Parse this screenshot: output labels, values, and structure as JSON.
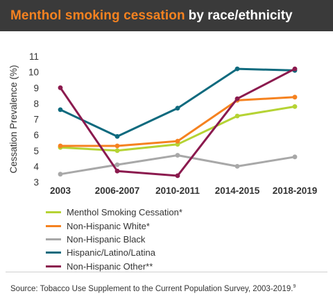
{
  "title": {
    "highlight": "Menthol smoking cessation",
    "rest": "by race/ethnicity"
  },
  "colors": {
    "title_bg": "#3a3a3a",
    "title_highlight": "#f58220"
  },
  "chart_data": {
    "type": "line",
    "title": "Menthol smoking cessation by race/ethnicity",
    "categories": [
      "2003",
      "2006-2007",
      "2010-2011",
      "2014-2015",
      "2018-2019"
    ],
    "ylabel": "Cessation Prevalence (%)",
    "xlabel": "",
    "ylim": [
      3,
      11
    ],
    "yticks": [
      3,
      4,
      5,
      6,
      7,
      8,
      9,
      10,
      11
    ],
    "grid": false,
    "legend_position": "bottom",
    "series": [
      {
        "name": "Menthol Smoking Cessation*",
        "color": "#b5d334",
        "values": [
          5.2,
          5.0,
          5.4,
          7.2,
          7.8
        ]
      },
      {
        "name": "Non-Hispanic White*",
        "color": "#f58220",
        "values": [
          5.3,
          5.3,
          5.6,
          8.2,
          8.4
        ]
      },
      {
        "name": "Non-Hispanic Black",
        "color": "#a8a8a8",
        "values": [
          3.5,
          4.1,
          4.7,
          4.0,
          4.6
        ]
      },
      {
        "name": "Hispanic/Latino/Latina",
        "color": "#0e6a7e",
        "values": [
          7.6,
          5.9,
          7.7,
          10.2,
          10.1
        ]
      },
      {
        "name": "Non-Hispanic Other**",
        "color": "#8b1a4e",
        "values": [
          9.0,
          3.7,
          3.4,
          8.3,
          10.2
        ]
      }
    ]
  },
  "source": {
    "text": "Source: Tobacco Use Supplement to the Current Population Survey, 2003-2019.",
    "footnote": "9"
  }
}
